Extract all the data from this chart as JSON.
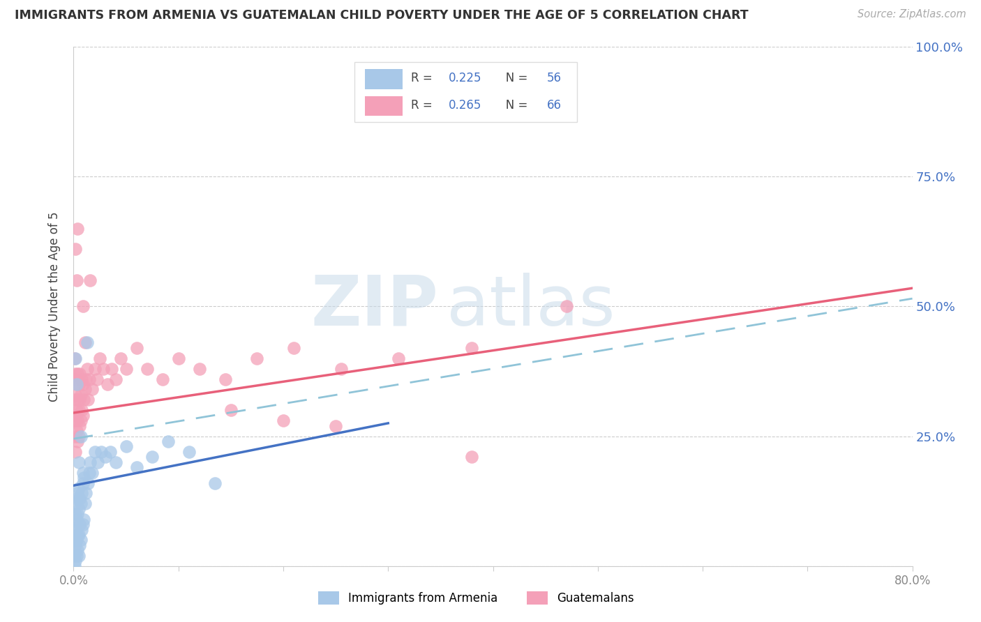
{
  "title": "IMMIGRANTS FROM ARMENIA VS GUATEMALAN CHILD POVERTY UNDER THE AGE OF 5 CORRELATION CHART",
  "source": "Source: ZipAtlas.com",
  "ylabel": "Child Poverty Under the Age of 5",
  "legend_label_1": "Immigrants from Armenia",
  "legend_label_2": "Guatemalans",
  "R1": "0.225",
  "N1": "56",
  "R2": "0.265",
  "N2": "66",
  "color1": "#a8c8e8",
  "color2": "#f4a0b8",
  "trend1_color": "#4472c4",
  "trend2_color": "#e8607a",
  "dashed_color": "#90c4d8",
  "xlim": [
    0.0,
    0.8
  ],
  "ylim": [
    0.0,
    1.0
  ],
  "yticks": [
    0.0,
    0.25,
    0.5,
    0.75,
    1.0
  ],
  "ytick_labels_right": [
    "",
    "25.0%",
    "50.0%",
    "75.0%",
    "100.0%"
  ],
  "xticks": [
    0.0,
    0.1,
    0.2,
    0.3,
    0.4,
    0.5,
    0.6,
    0.7,
    0.8
  ],
  "xtick_labels": [
    "0.0%",
    "",
    "",
    "",
    "",
    "",
    "",
    "",
    "80.0%"
  ],
  "background_color": "#ffffff",
  "blue_trend_x0": 0.0,
  "blue_trend_y0": 0.155,
  "blue_trend_x1": 0.3,
  "blue_trend_y1": 0.275,
  "pink_trend_x0": 0.0,
  "pink_trend_y0": 0.295,
  "pink_trend_x1": 0.8,
  "pink_trend_y1": 0.535,
  "dash_trend_x0": 0.0,
  "dash_trend_y0": 0.245,
  "dash_trend_x1": 0.8,
  "dash_trend_y1": 0.515,
  "armenia_x": [
    0.001,
    0.001,
    0.001,
    0.001,
    0.001,
    0.002,
    0.002,
    0.002,
    0.002,
    0.003,
    0.003,
    0.003,
    0.003,
    0.004,
    0.004,
    0.004,
    0.004,
    0.005,
    0.005,
    0.005,
    0.005,
    0.006,
    0.006,
    0.006,
    0.007,
    0.007,
    0.008,
    0.008,
    0.009,
    0.009,
    0.01,
    0.01,
    0.011,
    0.012,
    0.013,
    0.014,
    0.015,
    0.016,
    0.018,
    0.02,
    0.023,
    0.026,
    0.03,
    0.035,
    0.04,
    0.05,
    0.06,
    0.075,
    0.09,
    0.11,
    0.135,
    0.005,
    0.007,
    0.009,
    0.003,
    0.002
  ],
  "armenia_y": [
    0.0,
    0.02,
    0.05,
    0.08,
    0.12,
    0.01,
    0.04,
    0.07,
    0.1,
    0.02,
    0.05,
    0.09,
    0.13,
    0.03,
    0.06,
    0.1,
    0.14,
    0.02,
    0.06,
    0.11,
    0.15,
    0.04,
    0.08,
    0.13,
    0.05,
    0.12,
    0.07,
    0.14,
    0.08,
    0.16,
    0.09,
    0.17,
    0.12,
    0.14,
    0.43,
    0.16,
    0.18,
    0.2,
    0.18,
    0.22,
    0.2,
    0.22,
    0.21,
    0.22,
    0.2,
    0.23,
    0.19,
    0.21,
    0.24,
    0.22,
    0.16,
    0.2,
    0.25,
    0.18,
    0.35,
    0.4
  ],
  "guatemalan_x": [
    0.001,
    0.001,
    0.001,
    0.001,
    0.002,
    0.002,
    0.002,
    0.002,
    0.002,
    0.003,
    0.003,
    0.003,
    0.004,
    0.004,
    0.004,
    0.004,
    0.005,
    0.005,
    0.005,
    0.006,
    0.006,
    0.006,
    0.007,
    0.007,
    0.008,
    0.008,
    0.009,
    0.009,
    0.01,
    0.011,
    0.012,
    0.013,
    0.014,
    0.015,
    0.016,
    0.018,
    0.02,
    0.022,
    0.025,
    0.028,
    0.032,
    0.036,
    0.04,
    0.045,
    0.05,
    0.06,
    0.07,
    0.085,
    0.1,
    0.12,
    0.145,
    0.175,
    0.21,
    0.255,
    0.31,
    0.38,
    0.47,
    0.002,
    0.003,
    0.004,
    0.15,
    0.2,
    0.25,
    0.009,
    0.011,
    0.38
  ],
  "guatemalan_y": [
    0.28,
    0.32,
    0.36,
    0.4,
    0.25,
    0.29,
    0.33,
    0.37,
    0.22,
    0.26,
    0.3,
    0.35,
    0.24,
    0.28,
    0.32,
    0.37,
    0.25,
    0.3,
    0.35,
    0.27,
    0.32,
    0.37,
    0.28,
    0.33,
    0.3,
    0.36,
    0.29,
    0.35,
    0.32,
    0.34,
    0.36,
    0.38,
    0.32,
    0.36,
    0.55,
    0.34,
    0.38,
    0.36,
    0.4,
    0.38,
    0.35,
    0.38,
    0.36,
    0.4,
    0.38,
    0.42,
    0.38,
    0.36,
    0.4,
    0.38,
    0.36,
    0.4,
    0.42,
    0.38,
    0.4,
    0.42,
    0.5,
    0.61,
    0.55,
    0.65,
    0.3,
    0.28,
    0.27,
    0.5,
    0.43,
    0.21
  ]
}
